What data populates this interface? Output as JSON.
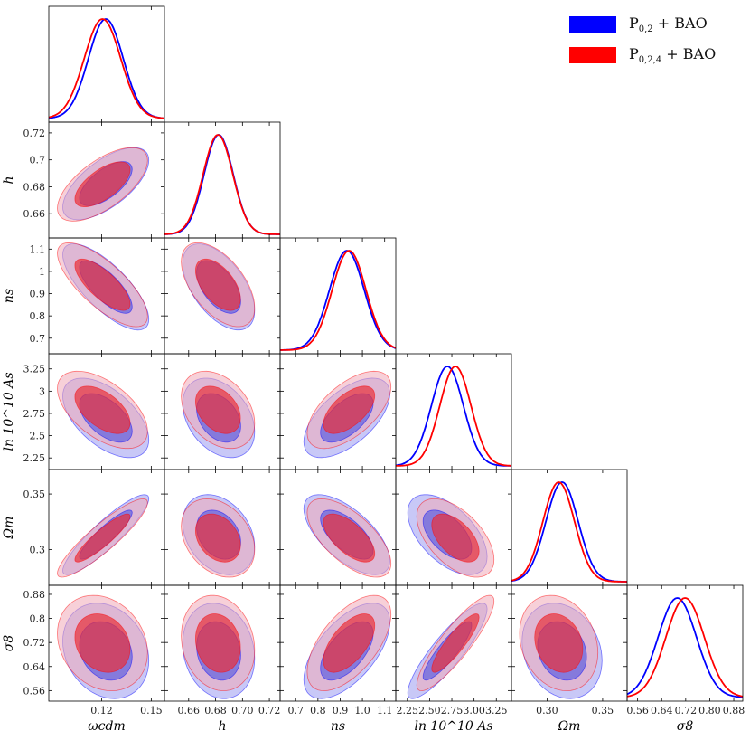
{
  "legend": [
    {
      "label": "P",
      "sub": "0,2",
      "suffix": " + BAO",
      "color": "#0000ff"
    },
    {
      "label": "P",
      "sub": "0,2,4",
      "suffix": " + BAO",
      "color": "#ff0000"
    }
  ],
  "colors": {
    "blue": "#0000ff",
    "red": "#ff0000",
    "overlap_dark": "#a8004a",
    "overlap_light": "#e8b4c8"
  },
  "chart_data": {
    "type": "corner",
    "params": [
      {
        "name": "omega_cdm",
        "xlabel": "ωcdm",
        "ylabel": "",
        "range": [
          0.088,
          0.158
        ],
        "ticks": [
          0.12,
          0.15
        ],
        "tick_labels": [
          "0.12",
          "0.15"
        ]
      },
      {
        "name": "h",
        "xlabel": "h",
        "ylabel": "h",
        "range": [
          0.642,
          0.728
        ],
        "ticks": [
          0.66,
          0.68,
          0.7,
          0.72
        ],
        "tick_labels": [
          "0.66",
          "0.68",
          "0.70",
          "0.72"
        ],
        "yticks": [
          0.66,
          0.68,
          0.7,
          0.72
        ],
        "ytick_labels": [
          "0.66",
          "0.68",
          "0.7",
          "0.72"
        ]
      },
      {
        "name": "n_s",
        "xlabel": "ns",
        "ylabel": "ns",
        "range": [
          0.63,
          1.15
        ],
        "ticks": [
          0.7,
          0.8,
          0.9,
          1.0,
          1.1
        ],
        "tick_labels": [
          "0.7",
          "0.8",
          "0.9",
          "1.0",
          "1.1"
        ],
        "yticks": [
          0.7,
          0.8,
          0.9,
          1.0,
          1.1
        ],
        "ytick_labels": [
          "0.7",
          "0.8",
          "0.9",
          "1",
          "1.1"
        ]
      },
      {
        "name": "ln10^10A_s",
        "xlabel": "ln 10^10 As",
        "ylabel": "ln 10^10 As",
        "range": [
          2.12,
          3.42
        ],
        "ticks": [
          2.25,
          2.5,
          2.75,
          3.0,
          3.25
        ],
        "tick_labels": [
          "2.25",
          "2.50",
          "2.75",
          "3.00",
          "3.25"
        ],
        "yticks": [
          2.25,
          2.5,
          2.75,
          3.0,
          3.25
        ],
        "ytick_labels": [
          "2.25",
          "2.5",
          "2.75",
          "3",
          "3.25"
        ]
      },
      {
        "name": "Omega_m",
        "xlabel": "Ωm",
        "ylabel": "Ωm",
        "range": [
          0.268,
          0.372
        ],
        "ticks": [
          0.3,
          0.35
        ],
        "tick_labels": [
          "0.30",
          "0.35"
        ],
        "yticks": [
          0.3,
          0.35
        ],
        "ytick_labels": [
          "0.3",
          "0.35"
        ]
      },
      {
        "name": "sigma_8",
        "xlabel": "σ8",
        "ylabel": "σ8",
        "range": [
          0.525,
          0.91
        ],
        "ticks": [
          0.56,
          0.64,
          0.72,
          0.8,
          0.88
        ],
        "tick_labels": [
          "0.56",
          "0.64",
          "0.72",
          "0.80",
          "0.88"
        ],
        "yticks": [
          0.56,
          0.64,
          0.72,
          0.8,
          0.88
        ],
        "ytick_labels": [
          "0.56",
          "0.64",
          "0.72",
          "0.8",
          "0.88"
        ]
      }
    ],
    "series": [
      {
        "name": "P0,2 + BAO",
        "color": "#0000ff",
        "mean": [
          0.1225,
          0.6823,
          0.93,
          2.7,
          0.3135,
          0.692
        ],
        "sigma": [
          0.0105,
          0.0108,
          0.078,
          0.18,
          0.0145,
          0.064
        ]
      },
      {
        "name": "P0,2,4 + BAO",
        "color": "#ff0000",
        "mean": [
          0.1205,
          0.6818,
          0.94,
          2.79,
          0.3105,
          0.718
        ],
        "sigma": [
          0.011,
          0.011,
          0.076,
          0.175,
          0.0142,
          0.064
        ]
      }
    ],
    "correlations": [
      [
        1.0,
        0.65,
        -0.75,
        -0.55,
        0.9,
        -0.2
      ],
      [
        0.65,
        1.0,
        -0.55,
        -0.35,
        -0.3,
        -0.15
      ],
      [
        -0.75,
        -0.55,
        1.0,
        0.6,
        -0.65,
        0.6
      ],
      [
        -0.55,
        -0.35,
        0.6,
        1.0,
        -0.55,
        0.88
      ],
      [
        0.9,
        -0.3,
        -0.65,
        -0.55,
        1.0,
        -0.2
      ],
      [
        -0.2,
        -0.15,
        0.6,
        0.88,
        -0.2,
        1.0
      ]
    ]
  }
}
